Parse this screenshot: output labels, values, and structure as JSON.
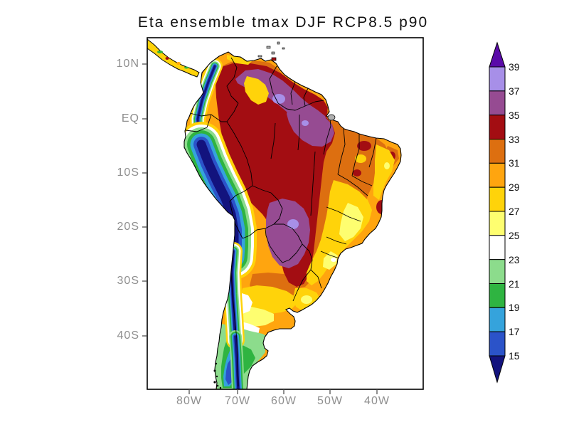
{
  "title": "Eta ensemble tmax DJF RCP8.5 p90",
  "map": {
    "y_axis_labels": [
      "10N",
      "EQ",
      "10S",
      "20S",
      "30S",
      "40S"
    ],
    "x_axis_labels": [
      "80W",
      "70W",
      "60W",
      "50W",
      "40W"
    ]
  },
  "colorbar": {
    "tick_labels": [
      "39",
      "37",
      "35",
      "33",
      "31",
      "29",
      "27",
      "25",
      "23",
      "21",
      "19",
      "17",
      "15"
    ],
    "segment_colors_top_to_bottom": [
      "#A78FE8",
      "#964B92",
      "#A30D12",
      "#DD6F10",
      "#FFA50F",
      "#FFD30A",
      "#FEFE70",
      "#FFFFFF",
      "#8CDC8C",
      "#2FB441",
      "#35A3DC",
      "#2B53C9"
    ],
    "above_range_color": "#5A0AA8",
    "below_range_color": "#13137E"
  },
  "palette": {
    "gt39": "#5A0AA8",
    "c37_39": "#A78FE8",
    "c35_37": "#964B92",
    "c33_35": "#A30D12",
    "c31_33": "#DD6F10",
    "c29_31": "#FFA50F",
    "c27_29": "#FFD30A",
    "c25_27": "#FEFE70",
    "c23_25": "#FFFFFF",
    "c21_23": "#8CDC8C",
    "c19_21": "#2FB441",
    "c17_19": "#35A3DC",
    "c15_17": "#2B53C9",
    "lt15": "#13137E",
    "nodata_gray": "#B0B0B0",
    "frame_black": "#000000",
    "axis_label_gray": "#8F8F8F",
    "tick_color": "#444444"
  },
  "chart_data": {
    "type": "heatmap",
    "title": "Eta ensemble tmax DJF RCP8.5 p90",
    "region": "South America",
    "x_tick_labels": [
      "80W",
      "70W",
      "60W",
      "50W",
      "40W"
    ],
    "y_tick_labels": [
      "10N",
      "EQ",
      "10S",
      "20S",
      "30S",
      "40S"
    ],
    "contour_levels": [
      15,
      17,
      19,
      21,
      23,
      25,
      27,
      29,
      31,
      33,
      35,
      37,
      39
    ],
    "level_colors_low_to_high": [
      "#13137E",
      "#2B53C9",
      "#35A3DC",
      "#2FB441",
      "#8CDC8C",
      "#FFFFFF",
      "#FEFE70",
      "#FFD30A",
      "#FFA50F",
      "#DD6F10",
      "#A30D12",
      "#964B92",
      "#A78FE8",
      "#5A0AA8"
    ],
    "legend_position": "right",
    "grid": false,
    "notable_features": {
      "hottest_areas_gt35": [
        "central Venezuela and Guianas interior",
        "lower Amazon",
        "Gran Chaco (Paraguay / northern Argentina)"
      ],
      "hot_core_33_35": "Amazon basin through central Brazil to northern Argentina",
      "coldest_areas_lt17": [
        "Andes cordillera",
        "Patagonian Andes"
      ]
    }
  }
}
